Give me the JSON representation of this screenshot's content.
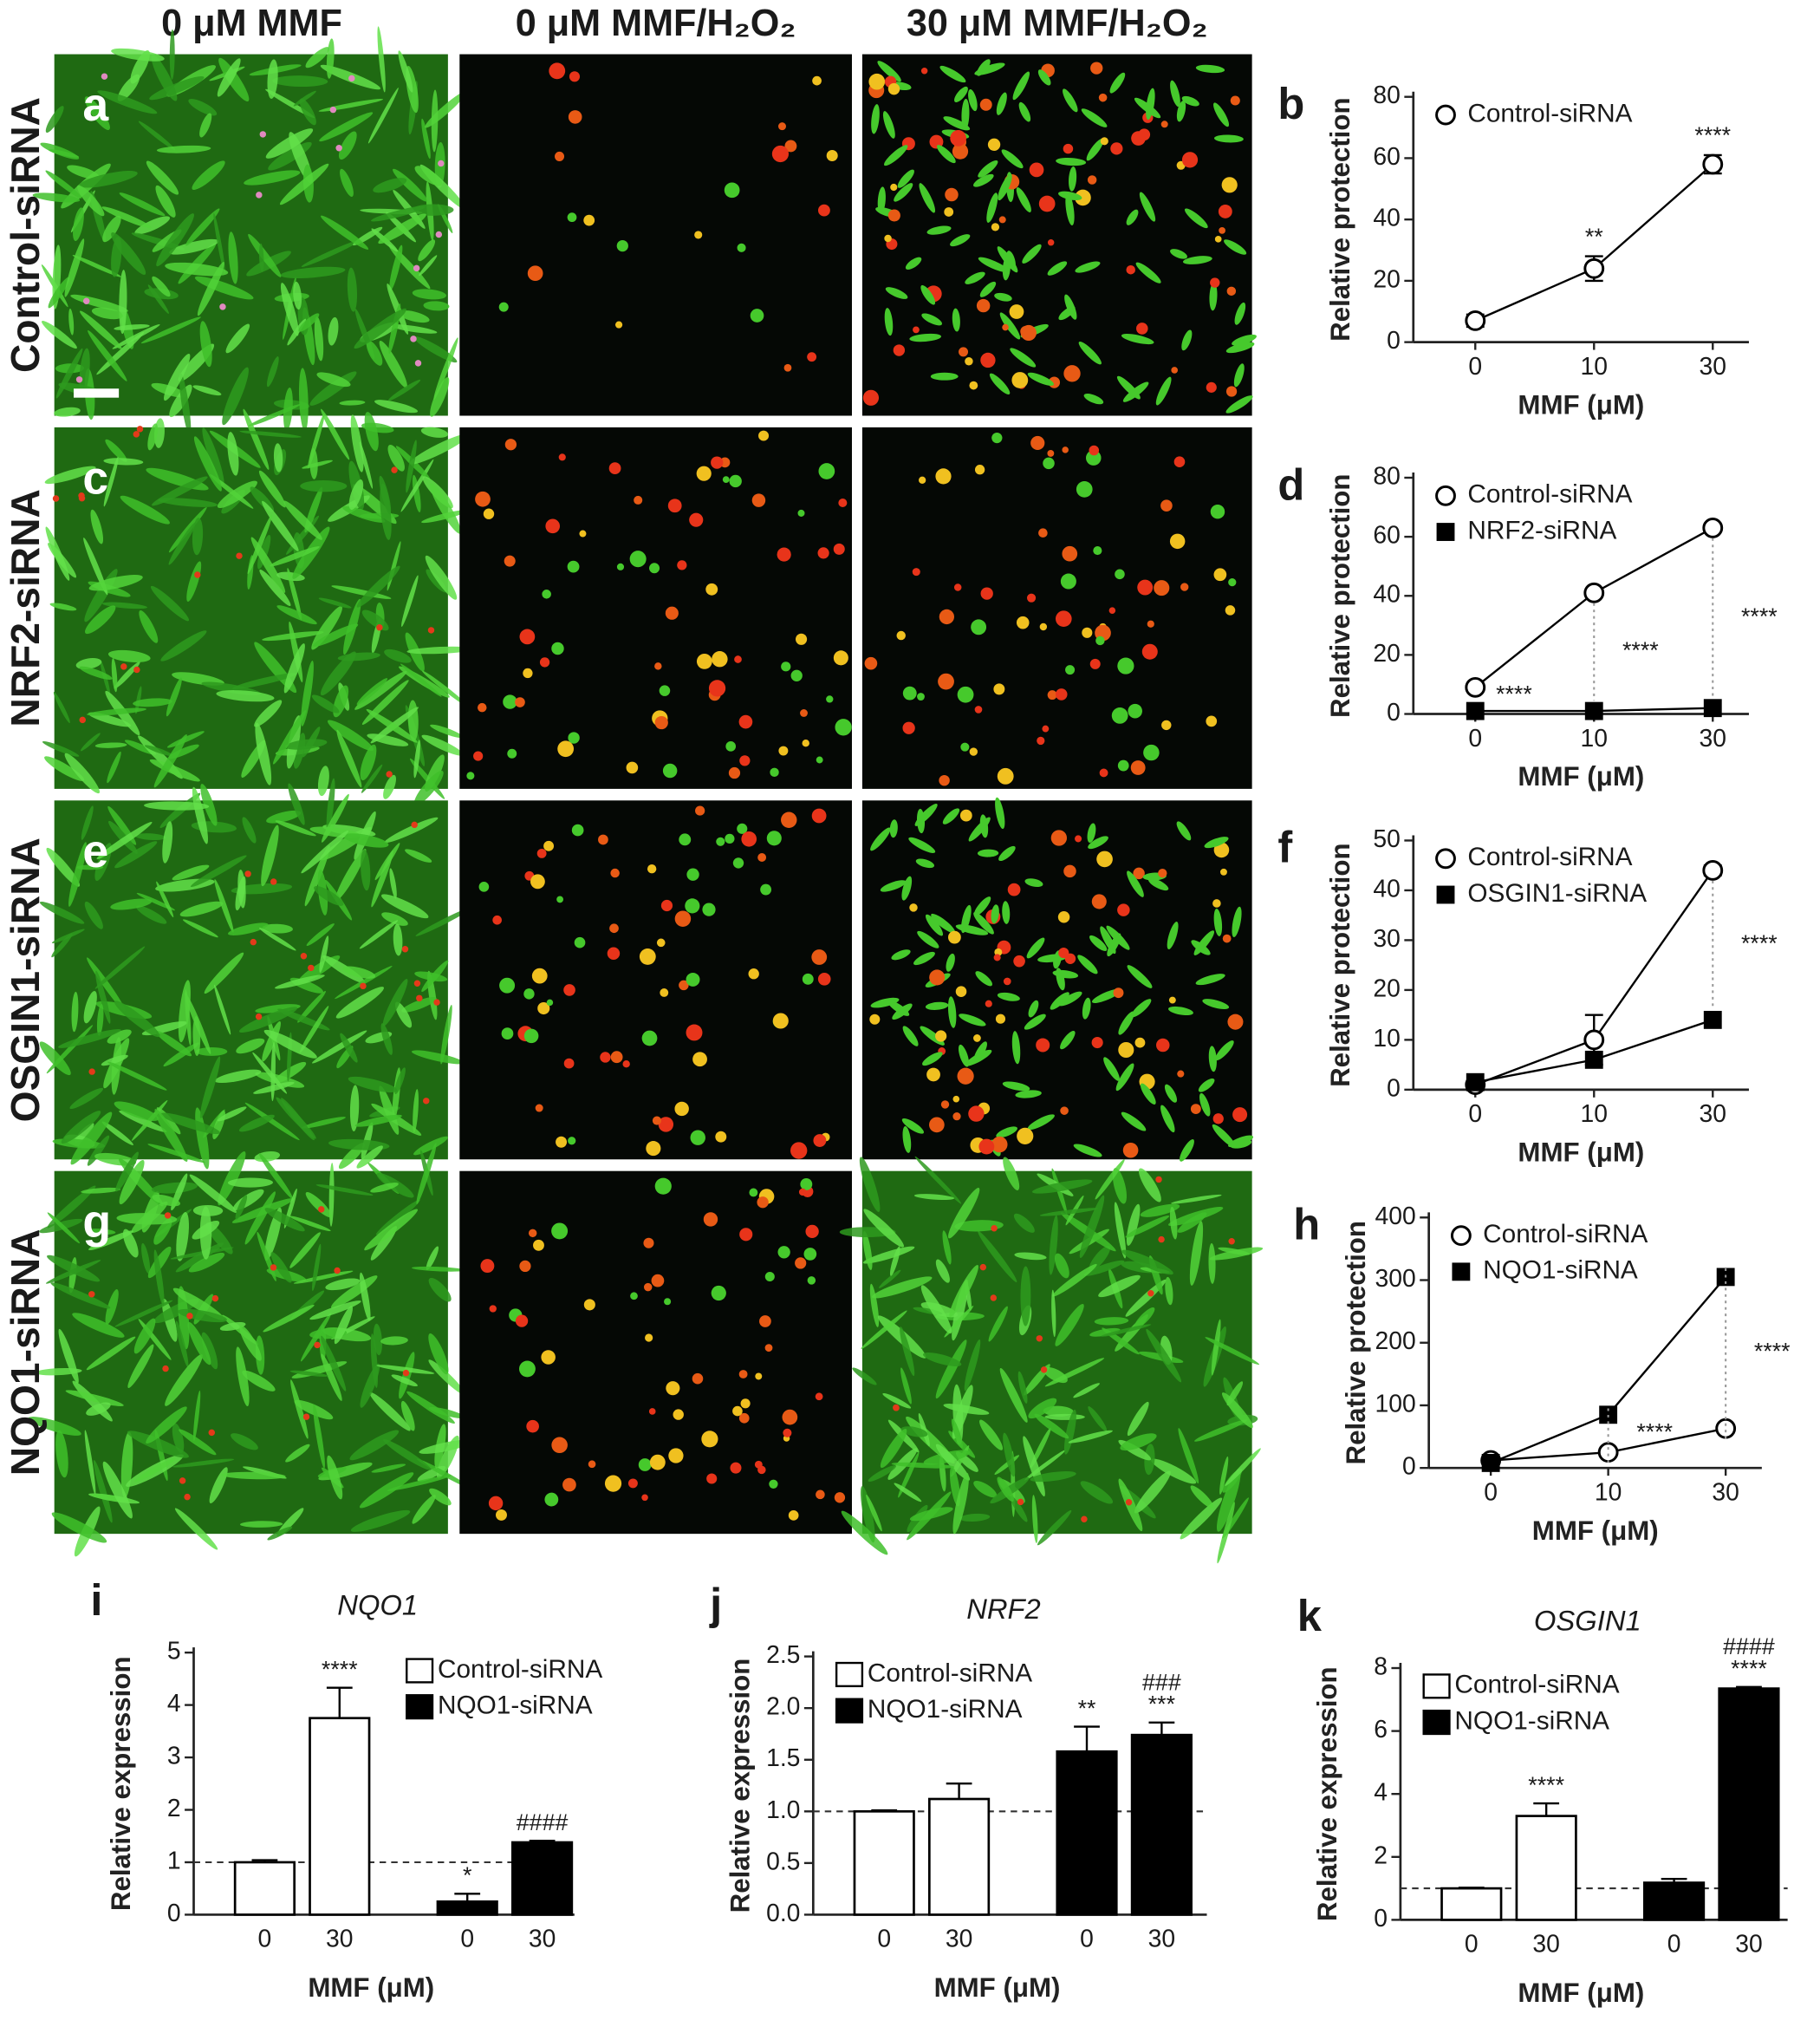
{
  "micrographs": {
    "column_titles": [
      "0 μM MMF",
      "0 μM MMF/H₂O₂",
      "30 μM MMF/H₂O₂"
    ],
    "row_labels": [
      "Control-siRNA",
      "NRF2-siRNA",
      "OSGIN1-siRNA",
      "NQO1-siRNA"
    ],
    "panel_letters": [
      "a",
      "c",
      "e",
      "g"
    ]
  },
  "chart_data": [
    {
      "type": "line",
      "panel": "b",
      "ylabel": "Relative protection",
      "xlabel": "MMF (μM)",
      "categories": [
        "0",
        "10",
        "30"
      ],
      "ylim": [
        0,
        80
      ],
      "yticks": [
        0,
        20,
        40,
        60,
        80
      ],
      "legend": "upper left",
      "series": [
        {
          "name": "Control-siRNA",
          "color": "#000000",
          "marker": "circle",
          "values": [
            7,
            24,
            58
          ],
          "errors": [
            2,
            4,
            3
          ],
          "labels": [
            null,
            "**",
            "****"
          ]
        }
      ]
    },
    {
      "type": "line",
      "panel": "d",
      "ylabel": "Relative protection",
      "xlabel": "MMF (μM)",
      "categories": [
        "0",
        "10",
        "30"
      ],
      "ylim": [
        0,
        80
      ],
      "yticks": [
        0,
        20,
        40,
        60,
        80
      ],
      "legend": "upper left",
      "series": [
        {
          "name": "Control-siRNA",
          "color": "#000000",
          "marker": "circle",
          "values": [
            9,
            41,
            63
          ]
        },
        {
          "name": "NRF2-siRNA",
          "color": "#000000",
          "marker": "square",
          "values": [
            1,
            1,
            2
          ],
          "labels": [
            "****",
            "****",
            "****"
          ]
        }
      ]
    },
    {
      "type": "line",
      "panel": "f",
      "ylabel": "Relative protection",
      "xlabel": "MMF (μM)",
      "categories": [
        "0",
        "10",
        "30"
      ],
      "ylim": [
        0,
        50
      ],
      "yticks": [
        0,
        10,
        20,
        30,
        40,
        50
      ],
      "legend": "upper left",
      "series": [
        {
          "name": "Control-siRNA",
          "color": "#000000",
          "marker": "circle",
          "values": [
            1,
            10,
            44
          ],
          "errors": [
            0.5,
            5,
            1
          ]
        },
        {
          "name": "OSGIN1-siRNA",
          "color": "#000000",
          "marker": "square",
          "values": [
            1.5,
            6,
            14
          ],
          "labels": [
            null,
            null,
            "****"
          ]
        }
      ]
    },
    {
      "type": "line",
      "panel": "h",
      "ylabel": "Relative protection",
      "xlabel": "MMF (μM)",
      "categories": [
        "0",
        "10",
        "30"
      ],
      "ylim": [
        0,
        400
      ],
      "yticks": [
        0,
        100,
        200,
        300,
        400
      ],
      "legend": "upper left",
      "series": [
        {
          "name": "Control-siRNA",
          "color": "#000000",
          "marker": "circle",
          "values": [
            12,
            25,
            63
          ]
        },
        {
          "name": "NQO1-siRNA",
          "color": "#000000",
          "marker": "square",
          "values": [
            8,
            85,
            305
          ],
          "labels": [
            null,
            "****",
            "****"
          ]
        }
      ]
    },
    {
      "type": "bar",
      "panel": "i",
      "title": "NQO1",
      "ylabel": "Relative expression",
      "xlabel": "MMF (μM)",
      "categories": [
        "0",
        "30",
        "0",
        "30"
      ],
      "ylim": [
        0,
        5
      ],
      "yticks": [
        0,
        1,
        2,
        3,
        4,
        5
      ],
      "reference_line": 1,
      "legend": "upper right",
      "series": [
        {
          "name": "Control-siRNA",
          "color": "#ffffff",
          "values": [
            1,
            3.75,
            null,
            null
          ],
          "errors": [
            0.04,
            0.58,
            null,
            null
          ],
          "labels": [
            null,
            "****",
            null,
            null
          ]
        },
        {
          "name": "NQO1-siRNA",
          "color": "#000000",
          "values": [
            null,
            null,
            0.25,
            1.38
          ],
          "errors": [
            null,
            null,
            0.15,
            0.03
          ],
          "labels": [
            null,
            null,
            "*",
            "####"
          ]
        }
      ]
    },
    {
      "type": "bar",
      "panel": "j",
      "title": "NRF2",
      "ylabel": "Relative expression",
      "xlabel": "MMF (μM)",
      "categories": [
        "0",
        "30",
        "0",
        "30"
      ],
      "ylim": [
        0,
        2.5
      ],
      "yticks": [
        {
          "value": 0,
          "label": "0.0"
        },
        0.5,
        {
          "value": 1,
          "label": "1.0"
        },
        1.5,
        {
          "value": 2,
          "label": "2.0"
        },
        2.5
      ],
      "reference_line": 1,
      "legend": "upper left",
      "series": [
        {
          "name": "Control-siRNA",
          "color": "#ffffff",
          "values": [
            1.0,
            1.12,
            null,
            null
          ],
          "errors": [
            0.01,
            0.15,
            null,
            null
          ]
        },
        {
          "name": "NQO1-siRNA",
          "color": "#000000",
          "values": [
            null,
            null,
            1.58,
            1.74
          ],
          "errors": [
            null,
            null,
            0.24,
            0.12
          ],
          "labels": [
            null,
            null,
            "**",
            "***"
          ],
          "labels2": [
            null,
            null,
            null,
            "###"
          ]
        }
      ]
    },
    {
      "type": "bar",
      "panel": "k",
      "title": "OSGIN1",
      "ylabel": "Relative expression",
      "xlabel": "MMF (μM)",
      "categories": [
        "0",
        "30",
        "0",
        "30"
      ],
      "ylim": [
        0,
        8
      ],
      "yticks": [
        0,
        2,
        4,
        6,
        8
      ],
      "reference_line": 1,
      "legend": "upper left",
      "series": [
        {
          "name": "Control-siRNA",
          "color": "#ffffff",
          "values": [
            1.0,
            3.3,
            null,
            null
          ],
          "errors": [
            0.02,
            0.4,
            null,
            null
          ],
          "labels": [
            null,
            "****",
            null,
            null
          ]
        },
        {
          "name": "NQO1-siRNA",
          "color": "#000000",
          "values": [
            null,
            null,
            1.18,
            7.35
          ],
          "errors": [
            null,
            null,
            0.12,
            0.05
          ],
          "labels": [
            null,
            null,
            null,
            "****"
          ],
          "labels2": [
            null,
            null,
            null,
            "####"
          ]
        }
      ]
    }
  ]
}
